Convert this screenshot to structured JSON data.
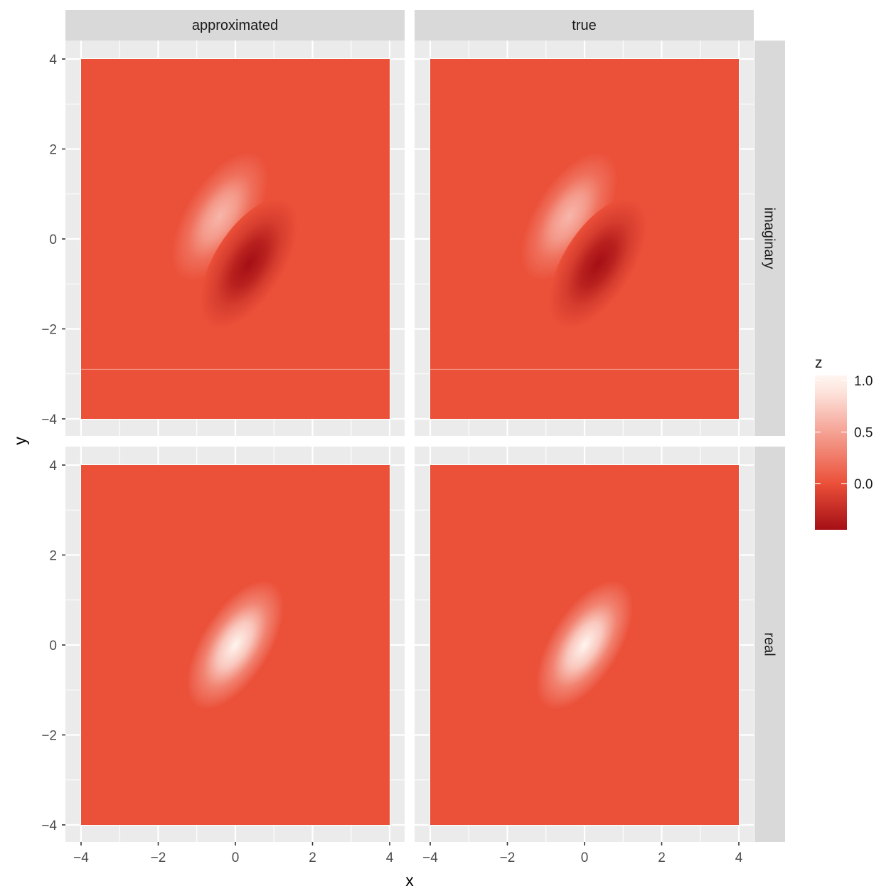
{
  "chart_data": {
    "type": "heatmap",
    "title": "",
    "xlabel": "x",
    "ylabel": "y",
    "xlim": [
      -4,
      4
    ],
    "ylim": [
      -4,
      4
    ],
    "x_ticks": [
      -4,
      -2,
      0,
      2,
      4
    ],
    "y_ticks": [
      -4,
      -2,
      0,
      2,
      4
    ],
    "x_tick_labels": [
      "−4",
      "−2",
      "0",
      "2",
      "4"
    ],
    "y_tick_labels": [
      "−4",
      "−2",
      "0",
      "2",
      "4"
    ],
    "grid": true,
    "facet_columns": [
      "approximated",
      "true"
    ],
    "facet_rows": [
      "imaginary",
      "real"
    ],
    "panels": [
      {
        "column": "approximated",
        "row": "imaginary",
        "peak": {
          "x": -0.4,
          "y": 0.5,
          "z": 0.62
        },
        "trough": {
          "x": 0.35,
          "y": -0.55,
          "z": -0.45
        }
      },
      {
        "column": "true",
        "row": "imaginary",
        "peak": {
          "x": -0.4,
          "y": 0.5,
          "z": 0.62
        },
        "trough": {
          "x": 0.35,
          "y": -0.55,
          "z": -0.45
        }
      },
      {
        "column": "approximated",
        "row": "real",
        "peak": {
          "x": 0.0,
          "y": 0.0,
          "z": 1.0
        }
      },
      {
        "column": "true",
        "row": "real",
        "peak": {
          "x": 0.0,
          "y": 0.0,
          "z": 1.0
        }
      }
    ],
    "background_z": 0.0,
    "legend": {
      "title": "z",
      "position": "right",
      "ticks": [
        1.0,
        0.5,
        0.0
      ],
      "tick_labels": [
        "1.0",
        "0.5",
        "0.0"
      ],
      "range": [
        -0.45,
        1.05
      ],
      "colors": {
        "low": "#a50f15",
        "mid": "#eb5039",
        "high": "#fff5f0"
      }
    }
  }
}
